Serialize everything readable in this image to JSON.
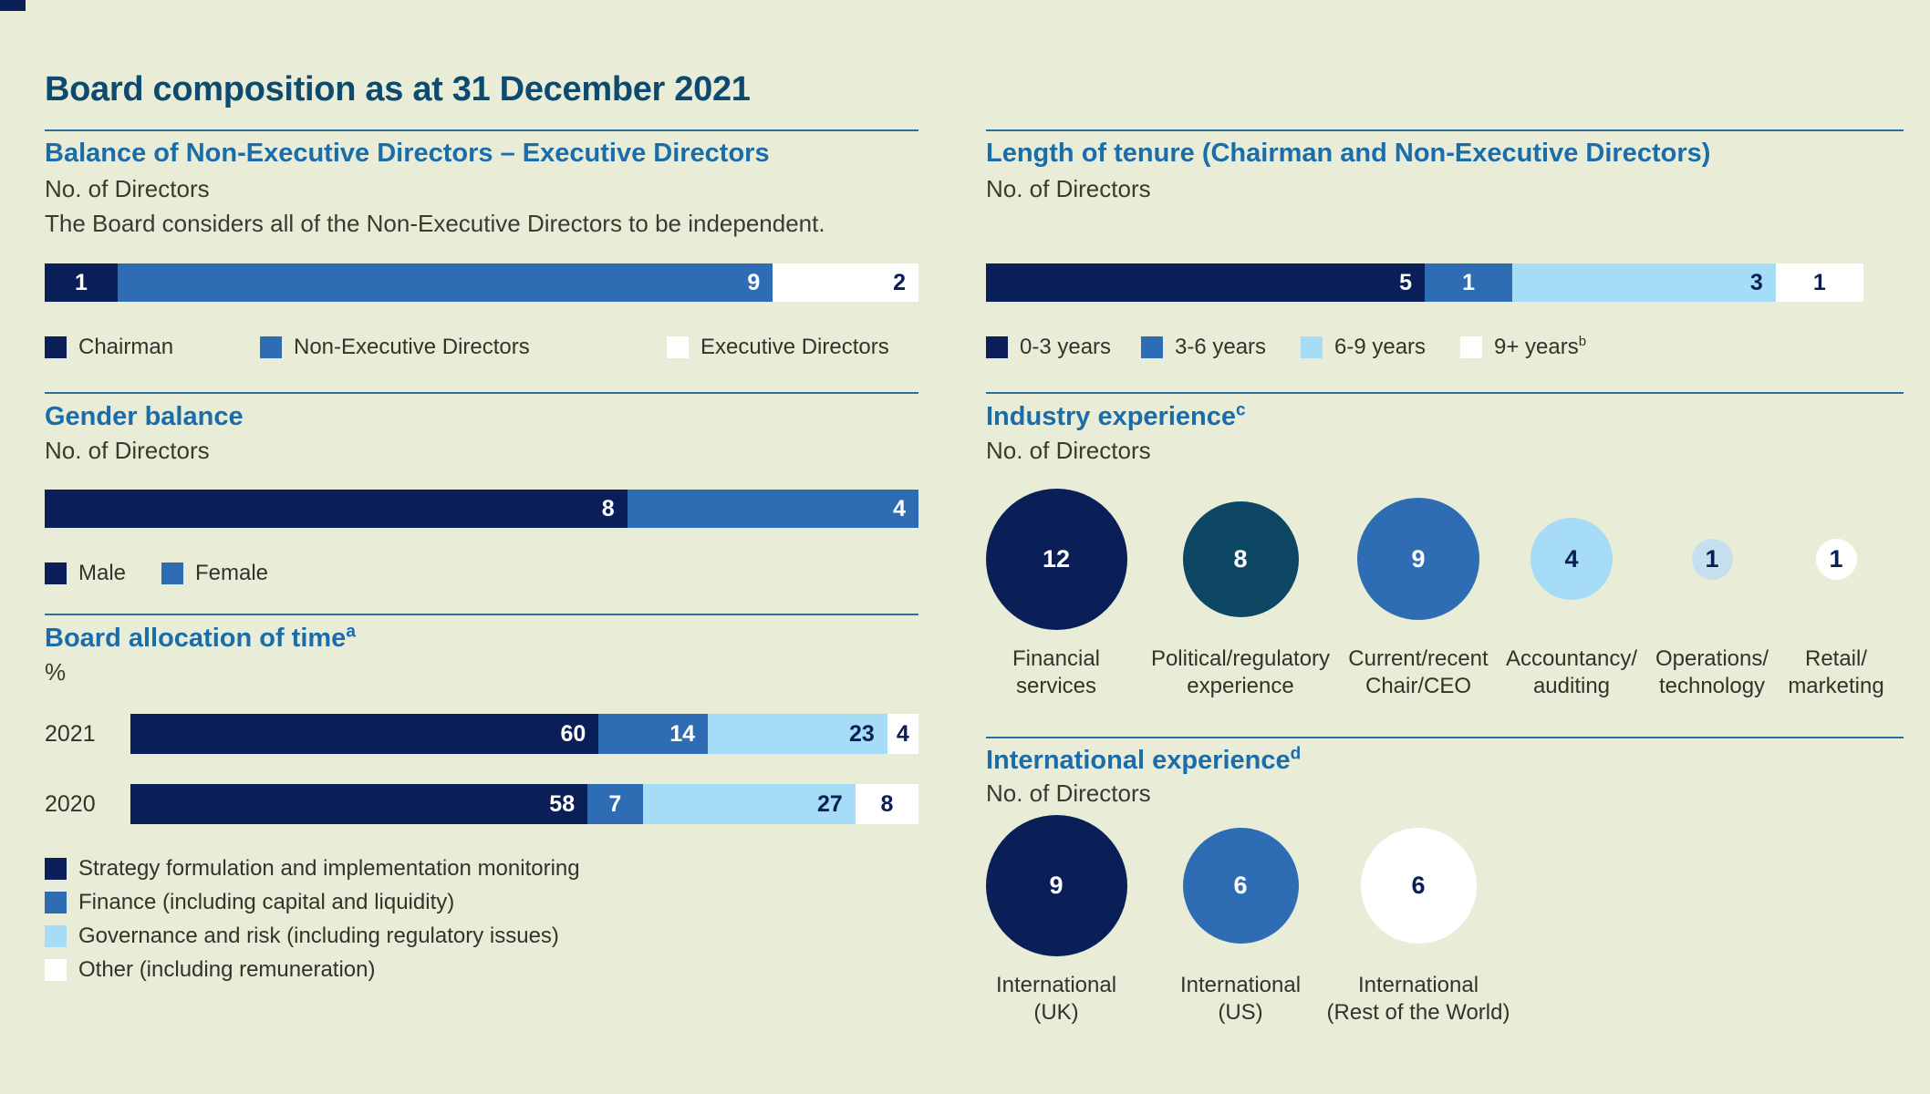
{
  "page": {
    "title": "Board composition as at 31 December 2021",
    "background": "#e9edd8"
  },
  "palette": {
    "navy": "#0a1f57",
    "blue": "#2e6db3",
    "light_blue": "#a6dcf5",
    "pale_blue": "#c6dfee",
    "teal": "#0d4764",
    "white": "#ffffff",
    "heading_blue": "#1a6da9",
    "title_navy": "#0d4a6e",
    "text_dark": "#3a3a31",
    "divider_blue": "#2d6ca5"
  },
  "sections": {
    "balance": {
      "heading": "Balance of Non-Executive Directors – Executive Directors",
      "unit": "No. of Directors",
      "note": "The Board considers all of the Non-Executive Directors to be independent."
    },
    "tenure": {
      "heading": "Length of tenure (Chairman and Non-Executive Directors)",
      "unit": "No. of Directors"
    },
    "gender": {
      "heading": "Gender balance",
      "unit": "No. of Directors"
    },
    "allocation": {
      "heading": "Board allocation of time",
      "heading_sup": "a",
      "unit": "%"
    },
    "industry": {
      "heading": "Industry experience",
      "heading_sup": "c",
      "unit": "No. of Directors"
    },
    "international": {
      "heading": "International experience",
      "heading_sup": "d",
      "unit": "No. of Directors"
    }
  },
  "chart_data": [
    {
      "id": "balance",
      "type": "bar",
      "stacked": true,
      "title": "Balance of Non-Executive Directors – Executive Directors",
      "ylabel": "No. of Directors",
      "categories": [
        "Chairman",
        "Non-Executive Directors",
        "Executive Directors"
      ],
      "values": [
        1,
        9,
        2
      ],
      "colors": [
        "#0a1f57",
        "#2e6db3",
        "#ffffff"
      ],
      "value_text_colors": [
        "#ffffff",
        "#ffffff",
        "#0a1f57"
      ],
      "legend_position": "bottom"
    },
    {
      "id": "tenure",
      "type": "bar",
      "stacked": true,
      "title": "Length of tenure (Chairman and Non-Executive Directors)",
      "ylabel": "No. of Directors",
      "categories": [
        "0-3 years",
        "3-6 years",
        "6-9 years",
        "9+ years"
      ],
      "legend_sups": [
        "",
        "",
        "",
        "b"
      ],
      "values": [
        5,
        1,
        3,
        1
      ],
      "colors": [
        "#0a1f57",
        "#2e6db3",
        "#a6dcf5",
        "#ffffff"
      ],
      "value_text_colors": [
        "#ffffff",
        "#ffffff",
        "#0a1f57",
        "#0a1f57"
      ],
      "legend_position": "bottom"
    },
    {
      "id": "gender",
      "type": "bar",
      "stacked": true,
      "title": "Gender balance",
      "ylabel": "No. of Directors",
      "categories": [
        "Male",
        "Female"
      ],
      "values": [
        8,
        4
      ],
      "colors": [
        "#0a1f57",
        "#2e6db3"
      ],
      "value_text_colors": [
        "#ffffff",
        "#ffffff"
      ],
      "legend_position": "bottom"
    },
    {
      "id": "allocation",
      "type": "bar",
      "stacked": true,
      "title": "Board allocation of time",
      "ylabel": "%",
      "categories": [
        "Strategy formulation and implementation monitoring",
        "Finance (including capital and liquidity)",
        "Governance and risk (including regulatory issues)",
        "Other (including remuneration)"
      ],
      "rows": [
        {
          "label": "2021",
          "values": [
            60,
            14,
            23,
            4
          ]
        },
        {
          "label": "2020",
          "values": [
            58,
            7,
            27,
            8
          ]
        }
      ],
      "colors": [
        "#0a1f57",
        "#2e6db3",
        "#a6dcf5",
        "#ffffff"
      ],
      "value_text_colors": [
        "#ffffff",
        "#ffffff",
        "#0a1f57",
        "#0a1f57"
      ],
      "legend_position": "bottom"
    },
    {
      "id": "industry",
      "type": "bubble",
      "title": "Industry experience",
      "ylabel": "No. of Directors",
      "items": [
        {
          "label": "Financial services",
          "label_lines": [
            "Financial",
            "services"
          ],
          "value": 12,
          "color": "#0a1f57",
          "text_color": "#ffffff"
        },
        {
          "label": "Political/regulatory experience",
          "label_lines": [
            "Political/regulatory",
            "experience"
          ],
          "value": 8,
          "color": "#0d4764",
          "text_color": "#ffffff"
        },
        {
          "label": "Current/recent Chair/CEO",
          "label_lines": [
            "Current/recent",
            "Chair/CEO"
          ],
          "value": 9,
          "color": "#2e6db3",
          "text_color": "#ffffff"
        },
        {
          "label": "Accountancy/auditing",
          "label_lines": [
            "Accountancy/",
            "auditing"
          ],
          "value": 4,
          "color": "#a6dcf5",
          "text_color": "#0a1f57"
        },
        {
          "label": "Operations/technology",
          "label_lines": [
            "Operations/",
            "technology"
          ],
          "value": 1,
          "color": "#c6dfee",
          "text_color": "#0a1f57"
        },
        {
          "label": "Retail/marketing",
          "label_lines": [
            "Retail/",
            "marketing"
          ],
          "value": 1,
          "color": "#ffffff",
          "text_color": "#0a1f57"
        }
      ]
    },
    {
      "id": "international",
      "type": "bubble",
      "title": "International experience",
      "ylabel": "No. of Directors",
      "items": [
        {
          "label": "International (UK)",
          "label_lines": [
            "International",
            "(UK)"
          ],
          "value": 9,
          "color": "#0a1f57",
          "text_color": "#ffffff"
        },
        {
          "label": "International (US)",
          "label_lines": [
            "International",
            "(US)"
          ],
          "value": 6,
          "color": "#2e6db3",
          "text_color": "#ffffff"
        },
        {
          "label": "International (Rest of the World)",
          "label_lines": [
            "International",
            "(Rest of the World)"
          ],
          "value": 6,
          "color": "#ffffff",
          "text_color": "#0a1f57"
        }
      ]
    }
  ]
}
